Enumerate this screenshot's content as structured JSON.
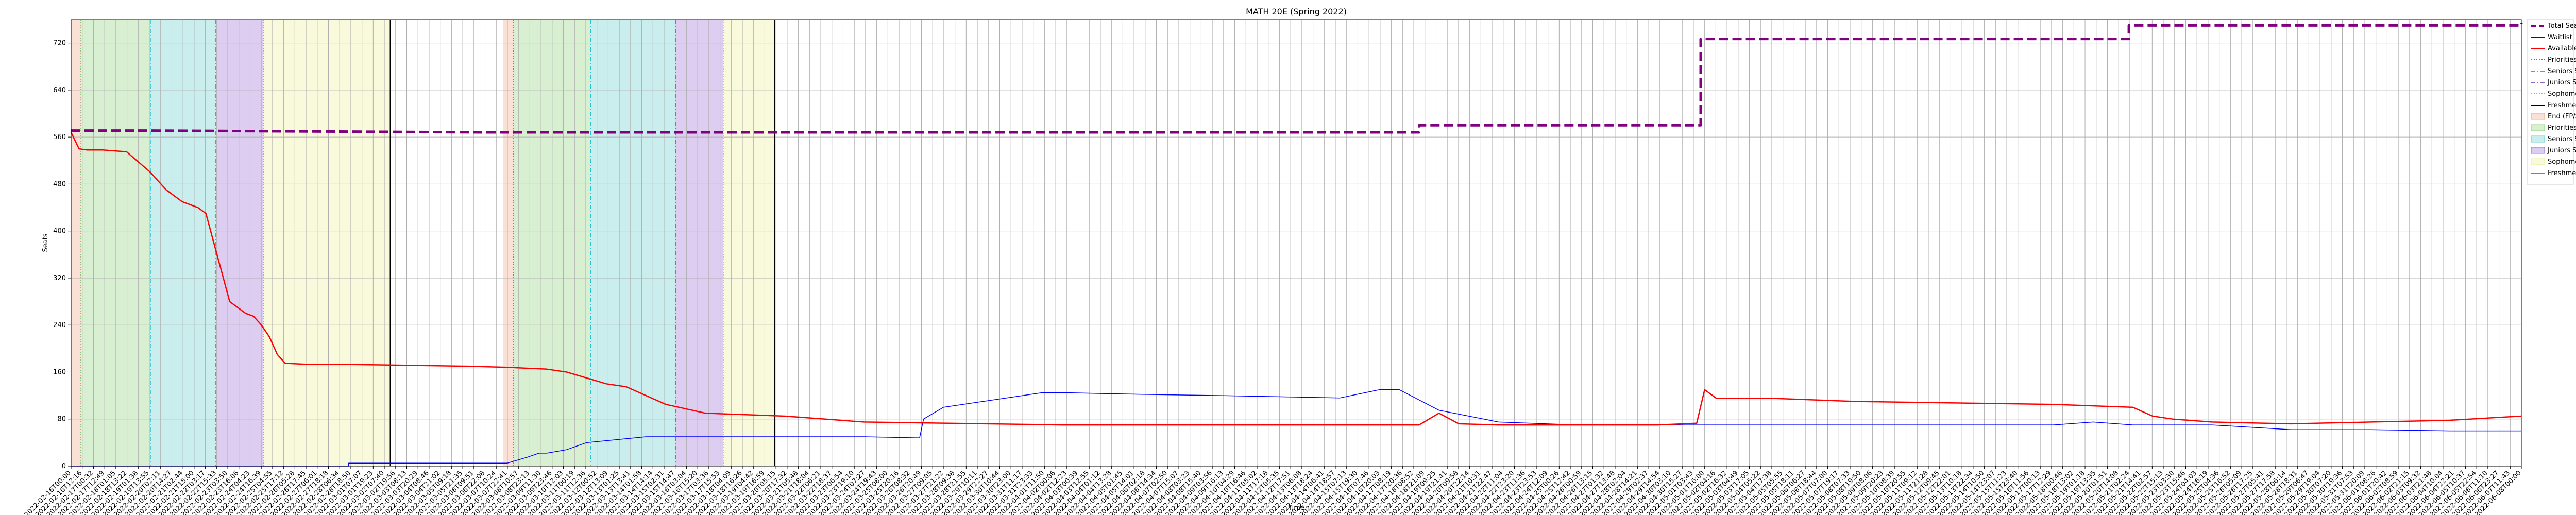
{
  "chart_data": {
    "type": "line",
    "title": "MATH 20E (Spring 2022)",
    "xlabel": "Time",
    "ylabel": "Seats",
    "ylim": [
      0,
      760
    ],
    "yticks": [
      0,
      80,
      160,
      240,
      320,
      400,
      480,
      560,
      640,
      720
    ],
    "grid": true,
    "legend_position": "outside-right",
    "x_tick_count": 220,
    "x_tick_first": "2022-02-16T00:00",
    "x_tick_last": "2022-06-08T00:00",
    "series": [
      {
        "name": "Total Seats",
        "color": "#800080",
        "style": "dashed",
        "x": [
          0,
          3,
          20,
          103,
          103,
          340,
          340,
          411,
          411,
          519,
          519,
          618,
          618
        ],
        "y": [
          571,
          571,
          571,
          568,
          568,
          568,
          580,
          580,
          727,
          727,
          750,
          750,
          754
        ]
      },
      {
        "name": "Waitlist",
        "color": "#0000ff",
        "style": "solid",
        "x": [
          0,
          70,
          70,
          110,
          115,
          118,
          120,
          125,
          130,
          145,
          160,
          200,
          214,
          215,
          220,
          230,
          240,
          245,
          250,
          270,
          290,
          320,
          330,
          335,
          345,
          360,
          380,
          400,
          420,
          440,
          460,
          480,
          500,
          510,
          520,
          540,
          560,
          580,
          600,
          615,
          618
        ],
        "y": [
          0,
          0,
          5,
          5,
          15,
          22,
          22,
          28,
          40,
          50,
          50,
          50,
          48,
          80,
          100,
          110,
          120,
          125,
          125,
          122,
          120,
          116,
          130,
          130,
          95,
          75,
          70,
          70,
          70,
          70,
          70,
          70,
          70,
          75,
          70,
          70,
          62,
          62,
          60,
          60,
          60
        ]
      },
      {
        "name": "Available",
        "color": "#ff0000",
        "style": "solid",
        "x": [
          0,
          2,
          4,
          8,
          14,
          20,
          24,
          28,
          32,
          34,
          36,
          38,
          40,
          42,
          44,
          46,
          48,
          50,
          52,
          54,
          60,
          70,
          100,
          110,
          120,
          125,
          130,
          135,
          140,
          145,
          150,
          160,
          180,
          200,
          250,
          300,
          340,
          345,
          350,
          360,
          380,
          400,
          410,
          412,
          415,
          430,
          450,
          500,
          520,
          525,
          530,
          540,
          560,
          580,
          600,
          618
        ],
        "y": [
          568,
          540,
          538,
          538,
          535,
          500,
          470,
          450,
          440,
          430,
          380,
          330,
          280,
          270,
          260,
          255,
          240,
          220,
          190,
          175,
          173,
          173,
          170,
          168,
          165,
          160,
          150,
          140,
          135,
          120,
          105,
          90,
          85,
          75,
          70,
          70,
          70,
          90,
          72,
          70,
          70,
          70,
          73,
          130,
          115,
          115,
          110,
          105,
          100,
          85,
          80,
          75,
          72,
          75,
          78,
          85
        ]
      }
    ],
    "phases": [
      {
        "name": "Priorities Start",
        "color": "#f4a58a"
      },
      {
        "name": "Seniors Start",
        "color": "#8fd37a"
      },
      {
        "name": "Juniors Start",
        "color": "#66cccc"
      },
      {
        "name": "Sophomores Start",
        "color": "#9b6fd8"
      },
      {
        "name": "Freshmen Start",
        "color": "#eeee99"
      }
    ],
    "phase_lines": [
      {
        "name": "Seniors Start",
        "color": "#2ca02c",
        "style": "dotted"
      },
      {
        "name": "Juniors Start",
        "color": "#17becf",
        "style": "dashdot"
      },
      {
        "name": "Sophomores Start",
        "color": "#9467bd",
        "style": "dashdot"
      },
      {
        "name": "Freshmen Start",
        "color": "#bcbd22",
        "style": "dotted"
      },
      {
        "name": "End (FP/SP)",
        "color": "#000000",
        "style": "solid"
      }
    ],
    "legend": [
      "Total Seats",
      "Waitlist",
      "Available",
      "Priorities Start",
      "Seniors Start",
      "Juniors Start",
      "Sophomores Start",
      "Freshmen Start",
      "End (FP/SP)",
      "Priorities Start",
      "Seniors Start",
      "Juniors Start",
      "Sophomores Start",
      "Freshmen Start"
    ]
  }
}
